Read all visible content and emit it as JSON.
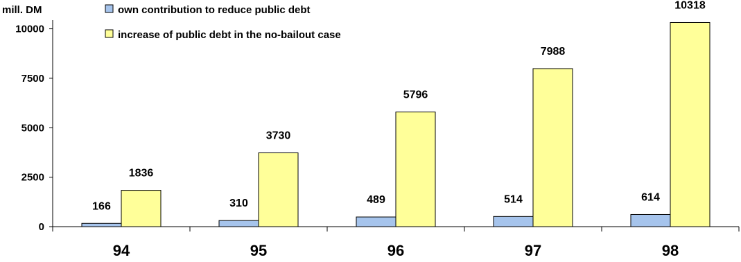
{
  "chart_data": {
    "type": "bar",
    "title": "",
    "xlabel": "",
    "ylabel": "mill. DM",
    "categories": [
      "94",
      "95",
      "96",
      "97",
      "98"
    ],
    "series": [
      {
        "name": "own contribution to reduce public debt",
        "color": "#a6c4ec",
        "values": [
          166,
          310,
          489,
          514,
          614
        ]
      },
      {
        "name": "increase of public debt in the no-bailout case",
        "color": "#ffff99",
        "values": [
          1836,
          3730,
          5796,
          7988,
          10318
        ]
      }
    ],
    "yticks": [
      0,
      2500,
      5000,
      7500,
      10000
    ],
    "ylim": [
      0,
      10300
    ],
    "grid": false,
    "legend_position": "top-left",
    "data_labels": true
  }
}
